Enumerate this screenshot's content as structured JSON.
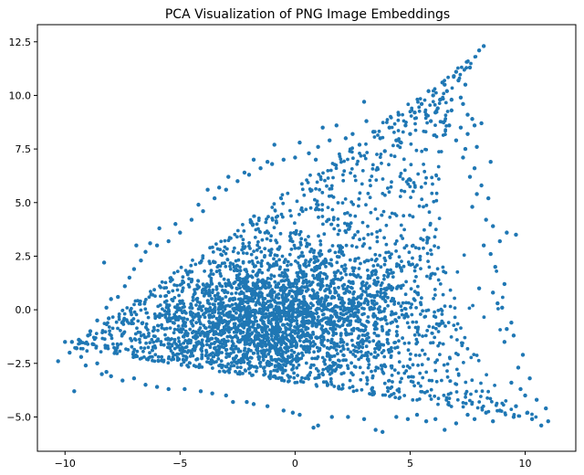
{
  "chart_data": {
    "type": "scatter",
    "title": "PCA Visualization of PNG Image Embeddings",
    "xlabel": "",
    "ylabel": "",
    "xlim": [
      -11.2,
      12.2
    ],
    "ylim": [
      -6.6,
      13.3
    ],
    "x_ticks": [
      -10,
      -5,
      0,
      5,
      10
    ],
    "x_tick_labels": [
      "−10",
      "−5",
      "0",
      "5",
      "10"
    ],
    "y_ticks": [
      -5.0,
      -2.5,
      0.0,
      2.5,
      5.0,
      7.5,
      10.0,
      12.5
    ],
    "y_tick_labels": [
      "−5.0",
      "−2.5",
      "0.0",
      "2.5",
      "5.0",
      "7.5",
      "10.0",
      "12.5"
    ],
    "grid": false,
    "marker_color": "#1f77b4",
    "series": [
      {
        "points": [
          [
            8.2,
            12.3
          ],
          [
            8.0,
            12.1
          ],
          [
            7.6,
            11.3
          ],
          [
            7.0,
            11.1
          ],
          [
            6.9,
            10.9
          ],
          [
            7.1,
            10.7
          ],
          [
            6.4,
            10.6
          ],
          [
            7.4,
            10.5
          ],
          [
            5.8,
            10.2
          ],
          [
            6.0,
            10.0
          ],
          [
            7.3,
            9.6
          ],
          [
            3.0,
            9.7
          ],
          [
            5.7,
            9.1
          ],
          [
            6.2,
            9.4
          ],
          [
            4.5,
            9.1
          ],
          [
            6.8,
            9.3
          ],
          [
            7.8,
            8.6
          ],
          [
            8.1,
            8.7
          ],
          [
            7.5,
            8.2
          ],
          [
            3.1,
            8.8
          ],
          [
            1.8,
            8.6
          ],
          [
            2.5,
            8.2
          ],
          [
            1.2,
            8.5
          ],
          [
            4.6,
            7.8
          ],
          [
            -0.9,
            7.7
          ],
          [
            0.2,
            7.8
          ],
          [
            1.0,
            7.6
          ],
          [
            7.9,
            7.6
          ],
          [
            8.5,
            6.9
          ],
          [
            7.6,
            6.2
          ],
          [
            8.4,
            5.2
          ],
          [
            8.6,
            3.9
          ],
          [
            9.2,
            3.6
          ],
          [
            9.6,
            3.5
          ],
          [
            8.2,
            3.0
          ],
          [
            8.0,
            1.0
          ],
          [
            8.8,
            0.3
          ],
          [
            9.4,
            -0.6
          ],
          [
            9.1,
            -1.5
          ],
          [
            9.9,
            -2.1
          ],
          [
            10.2,
            -3.2
          ],
          [
            9.8,
            -3.7
          ],
          [
            10.5,
            -4.2
          ],
          [
            10.9,
            -4.6
          ],
          [
            11.0,
            -5.2
          ],
          [
            10.3,
            -5.1
          ],
          [
            10.7,
            -5.4
          ],
          [
            9.5,
            -5.0
          ],
          [
            8.6,
            -5.2
          ],
          [
            7.8,
            -5.1
          ],
          [
            6.5,
            -5.6
          ],
          [
            5.7,
            -5.2
          ],
          [
            4.9,
            -5.1
          ],
          [
            3.8,
            -5.7
          ],
          [
            3.5,
            -5.6
          ],
          [
            2.3,
            -5.0
          ],
          [
            1.0,
            -5.4
          ],
          [
            0.2,
            -4.9
          ],
          [
            -0.5,
            -4.7
          ],
          [
            -1.2,
            -4.5
          ],
          [
            -2.1,
            -4.3
          ],
          [
            -3.0,
            -4.0
          ],
          [
            -4.1,
            -3.8
          ],
          [
            -5.5,
            -3.7
          ],
          [
            -6.5,
            -3.5
          ],
          [
            -7.0,
            -3.2
          ],
          [
            -8.0,
            -3.1
          ],
          [
            -8.2,
            -2.9
          ],
          [
            -8.6,
            -2.5
          ],
          [
            -9.3,
            -2.2
          ],
          [
            -9.5,
            -1.8
          ],
          [
            -9.7,
            -1.5
          ],
          [
            -10.0,
            -1.5
          ],
          [
            -10.3,
            -2.4
          ],
          [
            -9.8,
            -2.0
          ],
          [
            -9.6,
            -3.8
          ],
          [
            -9.0,
            -1.2
          ],
          [
            -8.9,
            -1.0
          ],
          [
            -8.6,
            -0.5
          ],
          [
            -8.2,
            0.1
          ],
          [
            -8.0,
            0.5
          ],
          [
            -7.4,
            1.1
          ],
          [
            -7.0,
            1.9
          ],
          [
            -6.5,
            2.7
          ],
          [
            -6.0,
            3.0
          ],
          [
            -5.5,
            3.2
          ],
          [
            -5.0,
            3.6
          ],
          [
            -4.5,
            4.2
          ],
          [
            -4.0,
            4.6
          ],
          [
            -3.5,
            5.2
          ],
          [
            -3.0,
            5.6
          ],
          [
            -2.5,
            6.0
          ],
          [
            -2.0,
            6.3
          ],
          [
            -1.5,
            6.6
          ],
          [
            -1.0,
            6.8
          ],
          [
            -0.5,
            7.0
          ],
          [
            -8.3,
            2.2
          ],
          [
            -6.9,
            3.0
          ],
          [
            -5.9,
            3.8
          ],
          [
            -3.8,
            5.6
          ],
          [
            -2.9,
            6.2
          ],
          [
            -1.8,
            7.0
          ],
          [
            0.6,
            7.3
          ],
          [
            1.5,
            7.9
          ],
          [
            2.2,
            8.0
          ],
          [
            3.4,
            8.3
          ],
          [
            3.7,
            8.0
          ],
          [
            4.1,
            8.5
          ],
          [
            4.8,
            8.6
          ],
          [
            5.2,
            9.2
          ],
          [
            5.5,
            9.6
          ],
          [
            6.3,
            9.8
          ],
          [
            6.6,
            10.2
          ],
          [
            6.5,
            10.5
          ],
          [
            6.8,
            9.8
          ],
          [
            7.2,
            9.9
          ],
          [
            7.7,
            8.9
          ],
          [
            7.2,
            8.5
          ],
          [
            7.0,
            7.9
          ],
          [
            7.4,
            7.5
          ],
          [
            7.3,
            7.1
          ],
          [
            7.8,
            6.6
          ],
          [
            8.1,
            5.8
          ],
          [
            7.9,
            5.4
          ],
          [
            7.7,
            4.8
          ],
          [
            8.3,
            4.2
          ],
          [
            8.9,
            3.2
          ],
          [
            8.5,
            2.6
          ],
          [
            8.7,
            2.0
          ],
          [
            9.1,
            1.2
          ],
          [
            8.6,
            0.8
          ],
          [
            9.0,
            0.1
          ],
          [
            9.2,
            -0.9
          ],
          [
            9.5,
            -1.2
          ],
          [
            9.7,
            -2.7
          ],
          [
            9.4,
            -3.4
          ],
          [
            10.0,
            -4.0
          ],
          [
            10.1,
            -4.8
          ],
          [
            9.6,
            -4.5
          ],
          [
            8.9,
            -4.7
          ],
          [
            8.3,
            -4.8
          ],
          [
            7.5,
            -4.9
          ],
          [
            7.0,
            -5.3
          ],
          [
            6.1,
            -5.1
          ],
          [
            5.3,
            -4.9
          ],
          [
            4.4,
            -5.0
          ],
          [
            3.0,
            -5.1
          ],
          [
            1.6,
            -5.0
          ],
          [
            0.8,
            -5.5
          ],
          [
            -0.1,
            -4.8
          ],
          [
            -1.8,
            -4.4
          ],
          [
            -2.7,
            -4.3
          ],
          [
            -3.6,
            -3.9
          ],
          [
            -4.8,
            -3.7
          ],
          [
            -6.0,
            -3.6
          ],
          [
            -7.5,
            -3.3
          ],
          [
            -8.4,
            -3.0
          ],
          [
            -9.1,
            -2.6
          ],
          [
            -9.4,
            -1.4
          ],
          [
            -8.8,
            -1.6
          ],
          [
            -8.1,
            -0.4
          ],
          [
            -7.7,
            0.6
          ],
          [
            -7.2,
            1.5
          ],
          [
            -6.7,
            2.3
          ],
          [
            -6.3,
            3.1
          ],
          [
            -5.2,
            4.0
          ],
          [
            -4.2,
            4.9
          ],
          [
            -3.3,
            5.7
          ],
          [
            -2.2,
            6.4
          ],
          [
            -1.2,
            6.9
          ],
          [
            0.0,
            7.1
          ],
          [
            0.9,
            7.0
          ],
          [
            2.8,
            7.7
          ],
          [
            3.9,
            7.4
          ],
          [
            4.4,
            7.9
          ],
          [
            5.0,
            8.2
          ],
          [
            5.9,
            8.8
          ],
          [
            6.1,
            9.2
          ],
          [
            6.7,
            8.6
          ],
          [
            7.5,
            9.1
          ]
        ]
      }
    ]
  }
}
